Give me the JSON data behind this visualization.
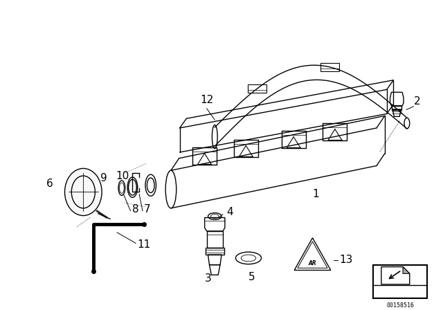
{
  "bg_color": "#ffffff",
  "line_color": "#000000",
  "fig_width": 6.4,
  "fig_height": 4.48,
  "dpi": 100,
  "catalog_number": "00158516"
}
